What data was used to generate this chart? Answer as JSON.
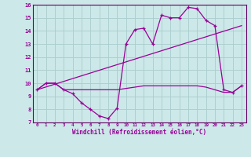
{
  "xlabel": "Windchill (Refroidissement éolien,°C)",
  "bg_color": "#cce8e8",
  "grid_color": "#aacccc",
  "line_color": "#990099",
  "spine_color": "#660066",
  "xlim": [
    -0.5,
    23.5
  ],
  "ylim": [
    7,
    16
  ],
  "xticks": [
    0,
    1,
    2,
    3,
    4,
    5,
    6,
    7,
    8,
    9,
    10,
    11,
    12,
    13,
    14,
    15,
    16,
    17,
    18,
    19,
    20,
    21,
    22,
    23
  ],
  "yticks": [
    7,
    8,
    9,
    10,
    11,
    12,
    13,
    14,
    15,
    16
  ],
  "line1_x": [
    0,
    1,
    2,
    3,
    4,
    5,
    6,
    7,
    8,
    9,
    10,
    11,
    12,
    13,
    14,
    15,
    16,
    17,
    18,
    19,
    20,
    21,
    22,
    23
  ],
  "line1_y": [
    9.5,
    10.0,
    10.0,
    9.5,
    9.2,
    8.5,
    8.0,
    7.5,
    7.3,
    8.1,
    13.0,
    14.1,
    14.2,
    13.0,
    15.2,
    15.0,
    15.0,
    15.8,
    15.7,
    14.8,
    14.4,
    9.5,
    9.3,
    9.8
  ],
  "line2_x": [
    0,
    1,
    2,
    3,
    4,
    5,
    6,
    7,
    8,
    9,
    10,
    11,
    12,
    13,
    14,
    15,
    16,
    17,
    18,
    19,
    20,
    21,
    22,
    23
  ],
  "line2_y": [
    9.5,
    10.0,
    10.0,
    9.5,
    9.5,
    9.5,
    9.5,
    9.5,
    9.5,
    9.5,
    9.6,
    9.7,
    9.8,
    9.8,
    9.8,
    9.8,
    9.8,
    9.8,
    9.8,
    9.7,
    9.5,
    9.3,
    9.3,
    9.8
  ],
  "line3_x": [
    0,
    23
  ],
  "line3_y": [
    9.5,
    14.4
  ]
}
